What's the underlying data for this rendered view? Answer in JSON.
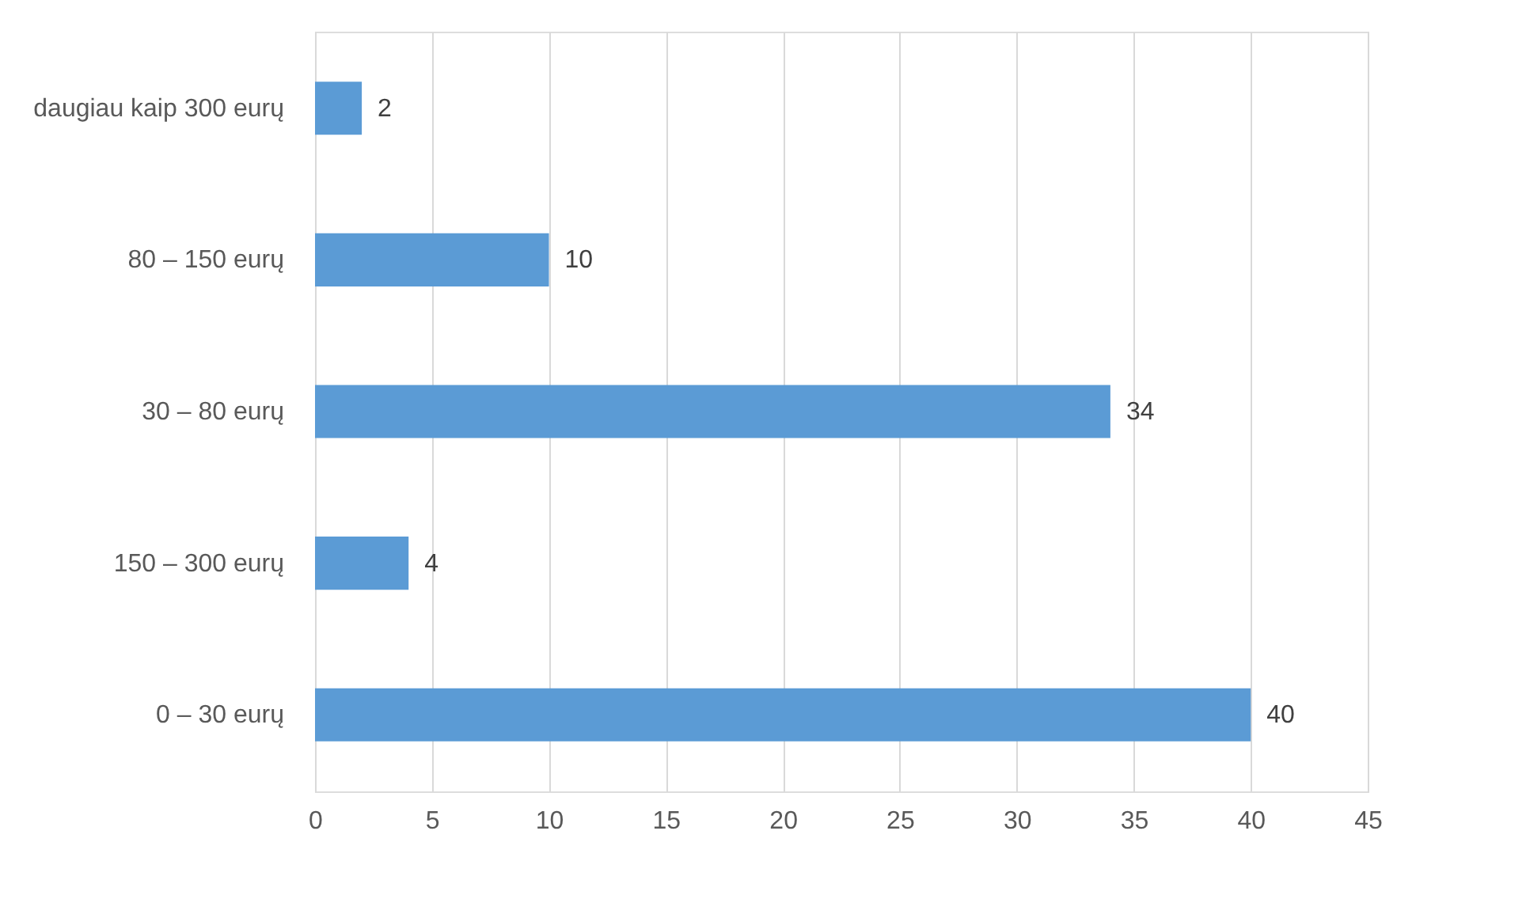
{
  "chart_data": {
    "type": "bar",
    "orientation": "horizontal",
    "categories": [
      "daugiau kaip 300 eurų",
      "80 – 150 eurų",
      "30 – 80 eurų",
      "150 – 300 eurų",
      "0 – 30 eurų"
    ],
    "values": [
      2,
      10,
      34,
      4,
      40
    ],
    "color": "#5b9bd5",
    "xlim": [
      0,
      45
    ],
    "xticks": [
      0,
      5,
      10,
      15,
      20,
      25,
      30,
      35,
      40,
      45
    ],
    "grid": "x",
    "data_labels": true
  }
}
